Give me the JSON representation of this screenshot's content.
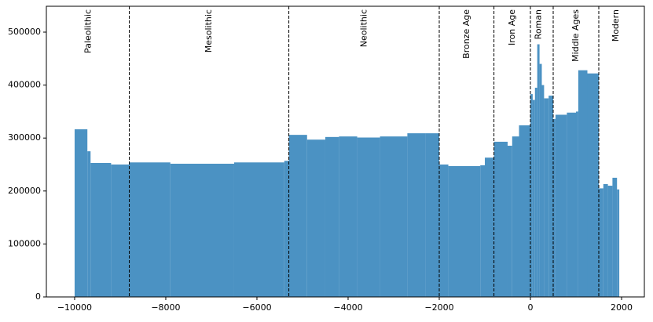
{
  "chart_data": {
    "type": "histogram",
    "bins": [
      -10000,
      -9720,
      -9650,
      -9200,
      -8800,
      -7900,
      -6500,
      -5400,
      -5300,
      -4900,
      -4500,
      -4200,
      -3800,
      -3300,
      -2700,
      -2300,
      -2000,
      -1800,
      -1100,
      -1000,
      -800,
      -500,
      -400,
      -250,
      0,
      50,
      100,
      150,
      200,
      250,
      300,
      400,
      500,
      550,
      800,
      1000,
      1050,
      1250,
      1500,
      1600,
      1700,
      1800,
      1900,
      1950
    ],
    "values": [
      316500,
      275000,
      253000,
      250000,
      254000,
      251500,
      254000,
      257000,
      306000,
      297000,
      302000,
      303000,
      301000,
      303000,
      309000,
      309000,
      250000,
      247000,
      248500,
      263000,
      293000,
      285500,
      303000,
      324000,
      383000,
      372000,
      395000,
      477000,
      440000,
      400000,
      375000,
      380000,
      336000,
      344000,
      348000,
      350000,
      428000,
      422000,
      205000,
      213000,
      210000,
      225000,
      203000
    ],
    "color": "#4b92c3",
    "xlim": [
      -10620,
      2500
    ],
    "ylim": [
      0,
      548800
    ],
    "xticks": [
      {
        "value": -10000,
        "label": "−10000"
      },
      {
        "value": -8000,
        "label": "−8000"
      },
      {
        "value": -6000,
        "label": "−6000"
      },
      {
        "value": -4000,
        "label": "−4000"
      },
      {
        "value": -2000,
        "label": "−2000"
      },
      0,
      2000
    ],
    "yticks": [
      0,
      100000,
      200000,
      300000,
      400000,
      500000
    ],
    "vlines": [
      -8800,
      -5300,
      -2000,
      -800,
      0,
      500,
      1500
    ],
    "annotations": [
      {
        "text": "Paleolithic",
        "x": -9700
      },
      {
        "text": "Mesolithic",
        "x": -7050
      },
      {
        "text": "Neolithic",
        "x": -3650
      },
      {
        "text": "Bronze Age",
        "x": -1400
      },
      {
        "text": "Iron Age",
        "x": -400
      },
      {
        "text": "Roman",
        "x": 180
      },
      {
        "text": "Middle Ages",
        "x": 1000
      },
      {
        "text": "Modern",
        "x": 1880
      }
    ]
  }
}
